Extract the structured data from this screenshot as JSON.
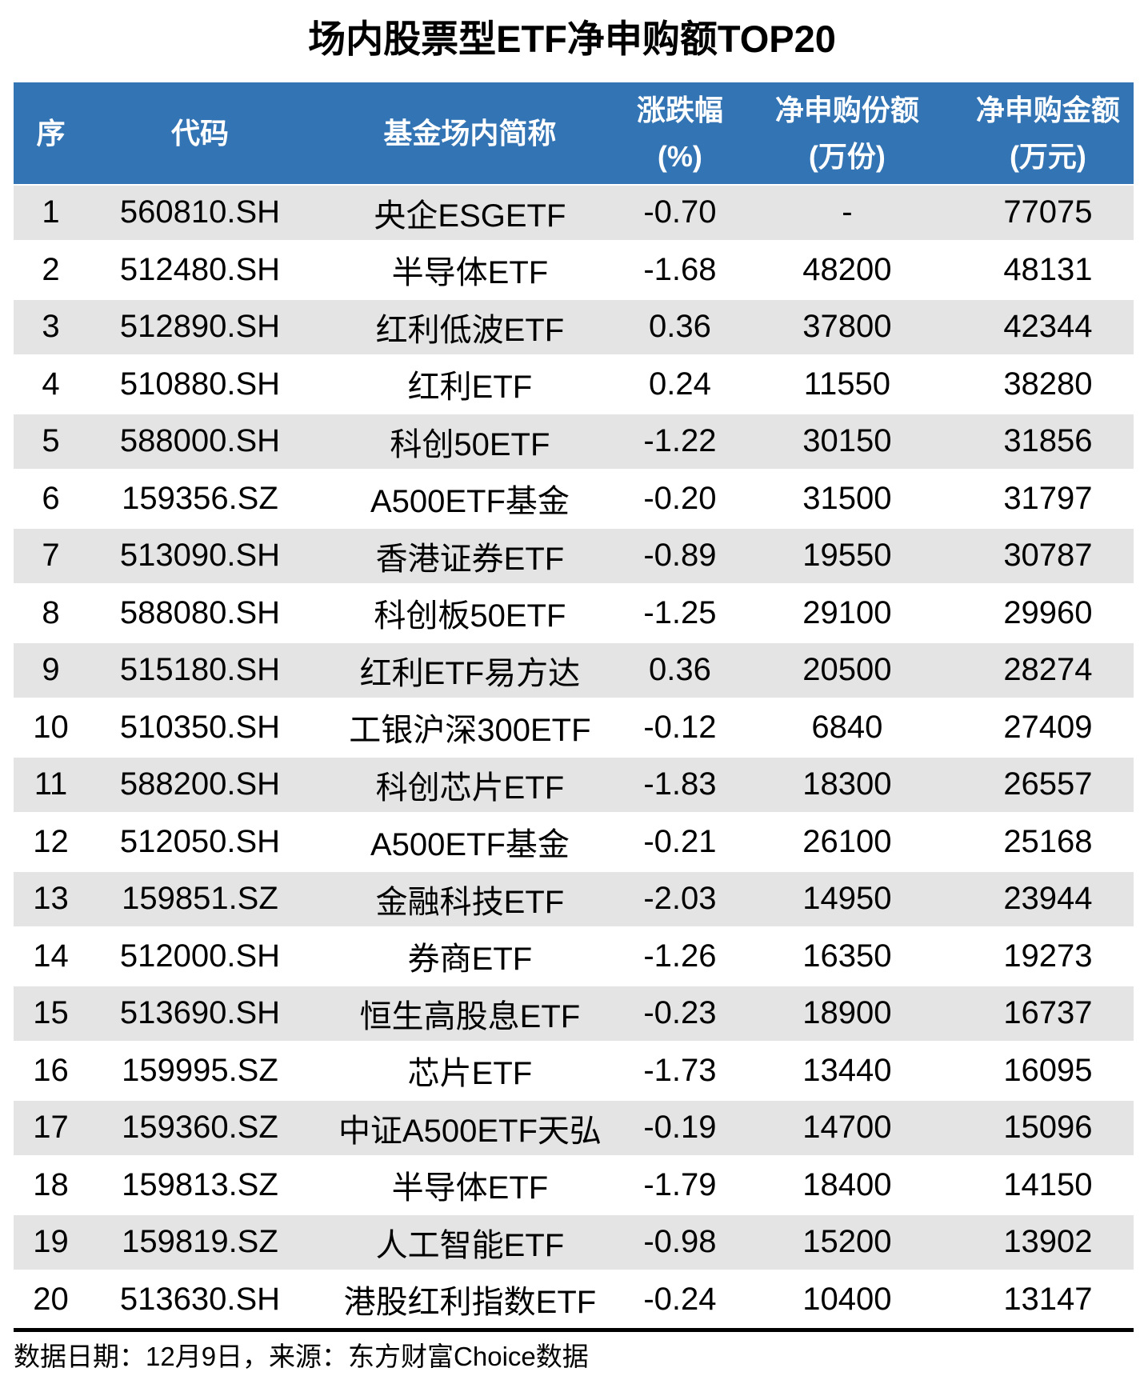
{
  "title": "场内股票型ETF净申购额TOP20",
  "footer": {
    "note": "数据日期：12月9日，来源：东方财富Choice数据"
  },
  "colors": {
    "header_bg": "#3374b5",
    "alt_row_bg": "#e4e4e4",
    "header_text": "#ffffff",
    "body_text": "#000000"
  },
  "chart_data": {
    "type": "table",
    "title": "场内股票型ETF净申购额TOP20",
    "columns": [
      {
        "label": "序",
        "unit": ""
      },
      {
        "label": "代码",
        "unit": ""
      },
      {
        "label": "基金场内简称",
        "unit": ""
      },
      {
        "label": "涨跌幅",
        "unit": "(%)"
      },
      {
        "label": "净申购份额",
        "unit": "(万份)"
      },
      {
        "label": "净申购金额",
        "unit": "(万元)"
      }
    ],
    "rows": [
      [
        "1",
        "560810.SH",
        "央企ESGETF",
        "-0.70",
        "-",
        "77075"
      ],
      [
        "2",
        "512480.SH",
        "半导体ETF",
        "-1.68",
        "48200",
        "48131"
      ],
      [
        "3",
        "512890.SH",
        "红利低波ETF",
        "0.36",
        "37800",
        "42344"
      ],
      [
        "4",
        "510880.SH",
        "红利ETF",
        "0.24",
        "11550",
        "38280"
      ],
      [
        "5",
        "588000.SH",
        "科创50ETF",
        "-1.22",
        "30150",
        "31856"
      ],
      [
        "6",
        "159356.SZ",
        "A500ETF基金",
        "-0.20",
        "31500",
        "31797"
      ],
      [
        "7",
        "513090.SH",
        "香港证券ETF",
        "-0.89",
        "19550",
        "30787"
      ],
      [
        "8",
        "588080.SH",
        "科创板50ETF",
        "-1.25",
        "29100",
        "29960"
      ],
      [
        "9",
        "515180.SH",
        "红利ETF易方达",
        "0.36",
        "20500",
        "28274"
      ],
      [
        "10",
        "510350.SH",
        "工银沪深300ETF",
        "-0.12",
        "6840",
        "27409"
      ],
      [
        "11",
        "588200.SH",
        "科创芯片ETF",
        "-1.83",
        "18300",
        "26557"
      ],
      [
        "12",
        "512050.SH",
        "A500ETF基金",
        "-0.21",
        "26100",
        "25168"
      ],
      [
        "13",
        "159851.SZ",
        "金融科技ETF",
        "-2.03",
        "14950",
        "23944"
      ],
      [
        "14",
        "512000.SH",
        "券商ETF",
        "-1.26",
        "16350",
        "19273"
      ],
      [
        "15",
        "513690.SH",
        "恒生高股息ETF",
        "-0.23",
        "18900",
        "16737"
      ],
      [
        "16",
        "159995.SZ",
        "芯片ETF",
        "-1.73",
        "13440",
        "16095"
      ],
      [
        "17",
        "159360.SZ",
        "中证A500ETF天弘",
        "-0.19",
        "14700",
        "15096"
      ],
      [
        "18",
        "159813.SZ",
        "半导体ETF",
        "-1.79",
        "18400",
        "14150"
      ],
      [
        "19",
        "159819.SZ",
        "人工智能ETF",
        "-0.98",
        "15200",
        "13902"
      ],
      [
        "20",
        "513630.SH",
        "港股红利指数ETF",
        "-0.24",
        "10400",
        "13147"
      ]
    ]
  }
}
